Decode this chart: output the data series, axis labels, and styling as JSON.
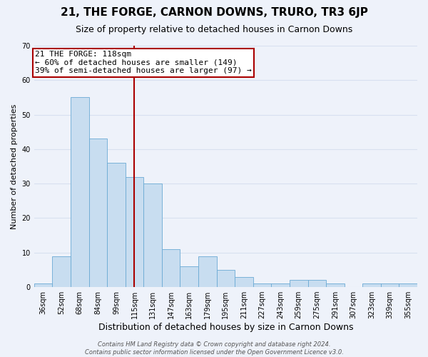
{
  "title": "21, THE FORGE, CARNON DOWNS, TRURO, TR3 6JP",
  "subtitle": "Size of property relative to detached houses in Carnon Downs",
  "xlabel": "Distribution of detached houses by size in Carnon Downs",
  "ylabel": "Number of detached properties",
  "categories": [
    "36sqm",
    "52sqm",
    "68sqm",
    "84sqm",
    "99sqm",
    "115sqm",
    "131sqm",
    "147sqm",
    "163sqm",
    "179sqm",
    "195sqm",
    "211sqm",
    "227sqm",
    "243sqm",
    "259sqm",
    "275sqm",
    "291sqm",
    "307sqm",
    "323sqm",
    "339sqm",
    "355sqm"
  ],
  "values": [
    1,
    9,
    55,
    43,
    36,
    32,
    30,
    11,
    6,
    9,
    5,
    3,
    1,
    1,
    2,
    2,
    1,
    0,
    1,
    1,
    1
  ],
  "bar_color": "#c8ddf0",
  "bar_edge_color": "#6aaad4",
  "bar_width": 1.0,
  "vline_x_index": 5,
  "vline_color": "#aa0000",
  "ylim": [
    0,
    70
  ],
  "yticks": [
    0,
    10,
    20,
    30,
    40,
    50,
    60,
    70
  ],
  "annotation_text": "21 THE FORGE: 118sqm\n← 60% of detached houses are smaller (149)\n39% of semi-detached houses are larger (97) →",
  "annotation_box_color": "#aa0000",
  "footer_line1": "Contains HM Land Registry data © Crown copyright and database right 2024.",
  "footer_line2": "Contains public sector information licensed under the Open Government Licence v3.0.",
  "bg_color": "#eef2fa",
  "grid_color": "#d8e0f0",
  "title_fontsize": 11,
  "subtitle_fontsize": 9,
  "xlabel_fontsize": 9,
  "ylabel_fontsize": 8,
  "tick_fontsize": 7,
  "annotation_fontsize": 8,
  "footer_fontsize": 6
}
